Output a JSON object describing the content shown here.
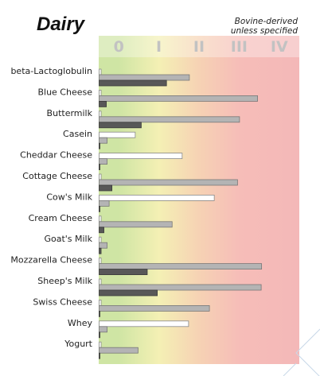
{
  "chart_data": {
    "type": "bar",
    "title": "Dairy",
    "annotation": [
      "Bovine-derived",
      "unless specified"
    ],
    "xlim": [
      0,
      5
    ],
    "bands": [
      "0",
      "I",
      "II",
      "III",
      "IV"
    ],
    "band_colors": [
      "#cfe5a4",
      "#f4f0b4",
      "#f6d2b4",
      "#f6bdb8",
      "#f4b8b8"
    ],
    "categories": [
      "beta-Lactoglobulin",
      "Blue Cheese",
      "Buttermilk",
      "Casein",
      "Cheddar Cheese",
      "Cottage Cheese",
      "Cow's Milk",
      "Cream Cheese",
      "Goat's Milk",
      "Mozzarella Cheese",
      "Sheep's Milk",
      "Swiss Cheese",
      "Whey",
      "Yogurt"
    ],
    "series": [
      {
        "color": "#ffffff",
        "values": [
          0.05,
          0.05,
          0.05,
          0.9,
          2.07,
          0.05,
          2.87,
          0.05,
          0.05,
          0.05,
          0.05,
          0.05,
          2.23,
          0.05
        ]
      },
      {
        "color": "#b4b4b4",
        "values": [
          2.25,
          3.95,
          3.5,
          0.2,
          0.2,
          3.45,
          0.25,
          1.82,
          0.2,
          4.05,
          4.04,
          2.75,
          0.2,
          0.97
        ]
      },
      {
        "color": "#585858",
        "values": [
          1.68,
          0.18,
          1.05,
          0.02,
          0.02,
          0.32,
          0.02,
          0.12,
          0.05,
          1.2,
          1.45,
          0.02,
          0.02,
          0.02
        ]
      }
    ]
  }
}
